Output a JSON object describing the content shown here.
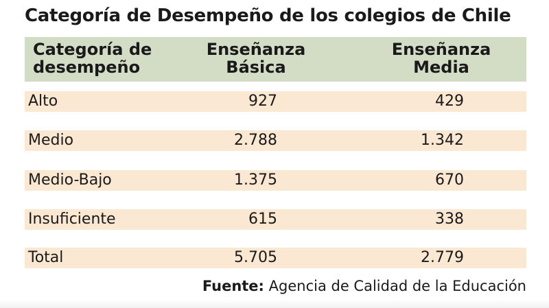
{
  "title": "Categoría de Desempeño de los colegios de Chile",
  "table": {
    "headers": [
      "Categoría de desempeño",
      "Enseñanza Básica",
      "Enseñanza Media"
    ],
    "rows": [
      {
        "label": "Alto",
        "basica": "927",
        "media": "429"
      },
      {
        "label": "Medio",
        "basica": "2.788",
        "media": "1.342"
      },
      {
        "label": "Medio-Bajo",
        "basica": "1.375",
        "media": "670"
      },
      {
        "label": "Insuficiente",
        "basica": "615",
        "media": "338"
      },
      {
        "label": "Total",
        "basica": "5.705",
        "media": "2.779"
      }
    ]
  },
  "source": {
    "label": "Fuente:",
    "text": "Agencia de Calidad de la Educación"
  },
  "colors": {
    "header_bg": "#d3ddc6",
    "row_bg": "#fbe8d2"
  },
  "chart_data": {
    "type": "table",
    "title": "Categoría de Desempeño de los colegios de Chile",
    "columns": [
      "Categoría de desempeño",
      "Enseñanza Básica",
      "Enseñanza Media"
    ],
    "categories": [
      "Alto",
      "Medio",
      "Medio-Bajo",
      "Insuficiente",
      "Total"
    ],
    "series": [
      {
        "name": "Enseñanza Básica",
        "values": [
          927,
          2788,
          1375,
          615,
          5705
        ]
      },
      {
        "name": "Enseñanza Media",
        "values": [
          429,
          1342,
          670,
          338,
          2779
        ]
      }
    ]
  }
}
